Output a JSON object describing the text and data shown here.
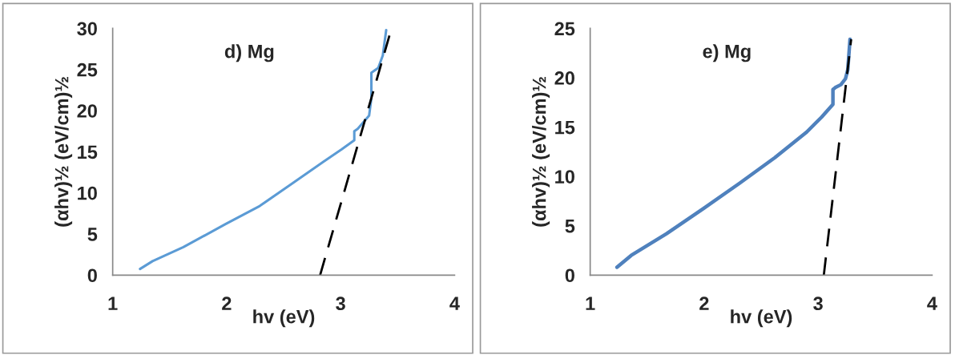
{
  "chart_data": [
    {
      "type": "line",
      "annotations": [
        "d) Mg"
      ],
      "xlabel": "hv (eV)",
      "ylabel": "(αhv)½ (eV/cm)½",
      "xlim": [
        1,
        4
      ],
      "xticks": [
        1,
        2,
        3,
        4
      ],
      "ylim": [
        0,
        30
      ],
      "yticks": [
        0,
        5,
        10,
        15,
        20,
        25,
        30
      ],
      "grid": false,
      "legend": false,
      "series": [
        {
          "color": "#5b9bd5",
          "x": [
            1.24,
            1.35,
            1.62,
            1.99,
            2.29,
            2.58,
            2.85,
            3.01,
            3.12,
            3.12,
            3.15,
            3.25,
            3.27,
            3.27,
            3.33,
            3.37,
            3.4
          ],
          "values": [
            0.75,
            1.7,
            3.4,
            6.2,
            8.4,
            11.2,
            13.8,
            15.3,
            16.4,
            17.5,
            17.8,
            19.4,
            21.5,
            24.6,
            25.2,
            26.7,
            29.8
          ],
          "line_style": "solid"
        },
        {
          "color": "#000000",
          "x": [
            2.82,
            3.43
          ],
          "values": [
            0,
            29.2
          ],
          "line_style": "dashed"
        }
      ]
    },
    {
      "type": "line",
      "annotations": [
        "e) Mg"
      ],
      "xlabel": "hv (eV)",
      "ylabel": "(αhv)½ (eV/cm)½",
      "xlim": [
        1,
        4
      ],
      "xticks": [
        1,
        2,
        3,
        4
      ],
      "ylim": [
        0,
        25
      ],
      "yticks": [
        0,
        5,
        10,
        15,
        20,
        25
      ],
      "grid": false,
      "legend": false,
      "series": [
        {
          "color": "#4f81bd",
          "x": [
            1.235,
            1.36,
            1.67,
            2.0,
            2.31,
            2.62,
            2.9,
            3.03,
            3.13,
            3.13,
            3.15,
            3.2,
            3.24,
            3.26,
            3.28
          ],
          "values": [
            0.8,
            2.0,
            4.2,
            6.8,
            9.3,
            11.9,
            14.5,
            16.0,
            17.3,
            18.8,
            19.0,
            19.3,
            19.9,
            20.8,
            23.9
          ],
          "line_style": "solid"
        },
        {
          "color": "#000000",
          "x": [
            3.05,
            3.29
          ],
          "values": [
            0,
            23.9
          ],
          "line_style": "dashed"
        }
      ]
    }
  ]
}
